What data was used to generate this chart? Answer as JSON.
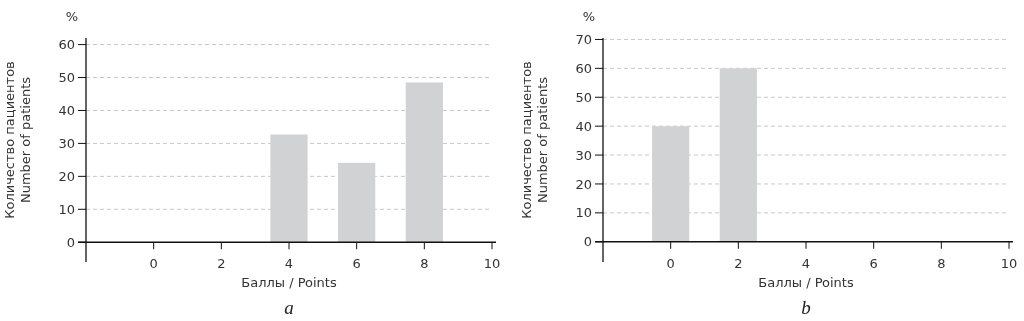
{
  "chart_data": [
    {
      "type": "bar",
      "title": "a",
      "xlabel": "Баллы / Points",
      "ylabel": "Количество пациентов\nNumber of patients",
      "annotations": [
        "%"
      ],
      "x": [
        4,
        6,
        8
      ],
      "values": [
        32.7,
        24.1,
        48.5
      ],
      "color": "#d1d2d4",
      "xlim": [
        -2,
        10
      ],
      "xticks": [
        0,
        2,
        4,
        6,
        8,
        10
      ],
      "ylim": [
        -6,
        62
      ],
      "yticks": [
        0,
        10,
        20,
        30,
        40,
        50,
        60
      ],
      "grid": "y"
    },
    {
      "type": "bar",
      "title": "b",
      "xlabel": "Баллы / Points",
      "ylabel": "Количество пациентов\nNumber of patients",
      "annotations": [
        "%"
      ],
      "x": [
        0,
        2
      ],
      "values": [
        40,
        60
      ],
      "color": "#d1d2d4",
      "xlim": [
        -2,
        10
      ],
      "xticks": [
        0,
        2,
        4,
        6,
        8,
        10
      ],
      "ylim": [
        -7,
        70.5
      ],
      "yticks": [
        0,
        10,
        20,
        30,
        40,
        50,
        60,
        70
      ],
      "grid": "y"
    }
  ]
}
